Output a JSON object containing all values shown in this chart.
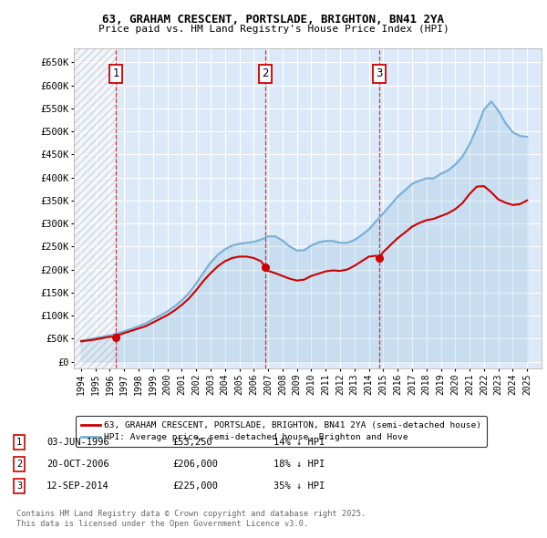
{
  "title1": "63, GRAHAM CRESCENT, PORTSLADE, BRIGHTON, BN41 2YA",
  "title2": "Price paid vs. HM Land Registry's House Price Index (HPI)",
  "ytick_values": [
    0,
    50000,
    100000,
    150000,
    200000,
    250000,
    300000,
    350000,
    400000,
    450000,
    500000,
    550000,
    600000,
    650000
  ],
  "ylabel_ticks": [
    "£0",
    "£50K",
    "£100K",
    "£150K",
    "£200K",
    "£250K",
    "£300K",
    "£350K",
    "£400K",
    "£450K",
    "£500K",
    "£550K",
    "£600K",
    "£650K"
  ],
  "xmin": 1993.5,
  "xmax": 2026.0,
  "ymin": -15000,
  "ymax": 680000,
  "bg_color": "#dce9f8",
  "red_color": "#cc0000",
  "blue_color": "#7ab0d4",
  "sale_dates": [
    1996.42,
    2006.8,
    2014.7
  ],
  "sale_prices": [
    53250,
    206000,
    225000
  ],
  "sale_labels": [
    "1",
    "2",
    "3"
  ],
  "legend_label_red": "63, GRAHAM CRESCENT, PORTSLADE, BRIGHTON, BN41 2YA (semi-detached house)",
  "legend_label_blue": "HPI: Average price, semi-detached house, Brighton and Hove",
  "table_data": [
    [
      "1",
      "03-JUN-1996",
      "£53,250",
      "14% ↓ HPI"
    ],
    [
      "2",
      "20-OCT-2006",
      "£206,000",
      "18% ↓ HPI"
    ],
    [
      "3",
      "12-SEP-2014",
      "£225,000",
      "35% ↓ HPI"
    ]
  ],
  "footer": "Contains HM Land Registry data © Crown copyright and database right 2025.\nThis data is licensed under the Open Government Licence v3.0.",
  "hpi_x": [
    1994.0,
    1994.5,
    1995.0,
    1995.5,
    1996.0,
    1996.5,
    1997.0,
    1997.5,
    1998.0,
    1998.5,
    1999.0,
    1999.5,
    2000.0,
    2000.5,
    2001.0,
    2001.5,
    2002.0,
    2002.5,
    2003.0,
    2003.5,
    2004.0,
    2004.5,
    2005.0,
    2005.5,
    2006.0,
    2006.5,
    2007.0,
    2007.5,
    2008.0,
    2008.5,
    2009.0,
    2009.5,
    2010.0,
    2010.5,
    2011.0,
    2011.5,
    2012.0,
    2012.5,
    2013.0,
    2013.5,
    2014.0,
    2014.5,
    2015.0,
    2015.5,
    2016.0,
    2016.5,
    2017.0,
    2017.5,
    2018.0,
    2018.5,
    2019.0,
    2019.5,
    2020.0,
    2020.5,
    2021.0,
    2021.5,
    2022.0,
    2022.5,
    2023.0,
    2023.5,
    2024.0,
    2024.5,
    2025.0
  ],
  "hpi_y": [
    46000,
    48000,
    51000,
    54000,
    57000,
    61000,
    66000,
    71000,
    77000,
    83000,
    92000,
    100000,
    109000,
    120000,
    133000,
    149000,
    170000,
    193000,
    215000,
    232000,
    244000,
    252000,
    256000,
    258000,
    260000,
    265000,
    272000,
    272000,
    263000,
    250000,
    241000,
    242000,
    252000,
    259000,
    262000,
    262000,
    258000,
    258000,
    264000,
    275000,
    287000,
    305000,
    322000,
    340000,
    358000,
    372000,
    386000,
    393000,
    398000,
    398000,
    408000,
    415000,
    428000,
    445000,
    472000,
    507000,
    547000,
    565000,
    545000,
    518000,
    498000,
    490000,
    488000
  ],
  "red_x": [
    1994.0,
    1994.5,
    1995.0,
    1995.5,
    1996.0,
    1996.42,
    1996.5,
    1997.0,
    1997.5,
    1998.0,
    1998.5,
    1999.0,
    1999.5,
    2000.0,
    2000.5,
    2001.0,
    2001.5,
    2002.0,
    2002.5,
    2003.0,
    2003.5,
    2004.0,
    2004.5,
    2005.0,
    2005.5,
    2006.0,
    2006.5,
    2006.8,
    2007.0,
    2007.5,
    2008.0,
    2008.5,
    2009.0,
    2009.5,
    2010.0,
    2010.5,
    2011.0,
    2011.5,
    2012.0,
    2012.5,
    2013.0,
    2013.5,
    2014.0,
    2014.5,
    2014.7,
    2015.0,
    2015.5,
    2016.0,
    2016.5,
    2017.0,
    2017.5,
    2018.0,
    2018.5,
    2019.0,
    2019.5,
    2020.0,
    2020.5,
    2021.0,
    2021.5,
    2022.0,
    2022.5,
    2023.0,
    2023.5,
    2024.0,
    2024.5,
    2025.0
  ],
  "red_y": [
    44000,
    46000,
    48000,
    51000,
    54000,
    53250,
    57000,
    62000,
    67000,
    72000,
    77000,
    85000,
    93000,
    101000,
    111000,
    123000,
    137000,
    155000,
    175000,
    192000,
    207000,
    218000,
    225000,
    228000,
    228000,
    225000,
    218000,
    206000,
    197000,
    192000,
    186000,
    180000,
    176000,
    178000,
    186000,
    191000,
    196000,
    198000,
    197000,
    200000,
    208000,
    218000,
    228000,
    230000,
    225000,
    238000,
    253000,
    268000,
    280000,
    293000,
    301000,
    307000,
    310000,
    316000,
    322000,
    331000,
    344000,
    364000,
    380000,
    381000,
    368000,
    352000,
    345000,
    340000,
    342000,
    350000
  ]
}
